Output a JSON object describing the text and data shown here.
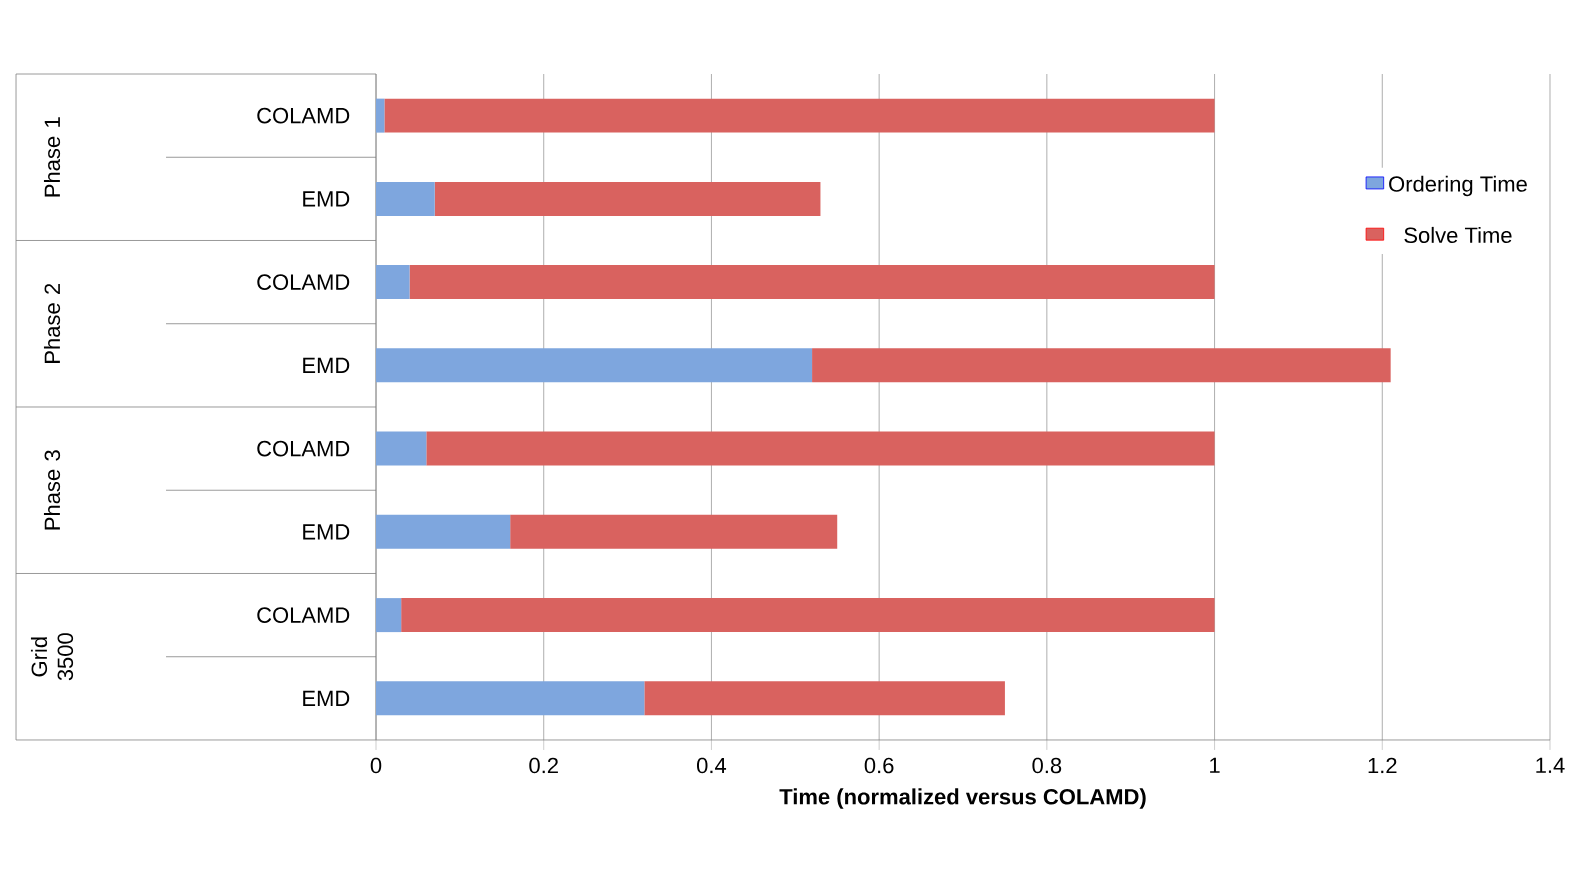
{
  "chart_data": {
    "type": "bar",
    "orientation": "horizontal",
    "stacked": true,
    "categories": [
      "COLAMD",
      "EMD",
      "COLAMD",
      "EMD",
      "COLAMD",
      "EMD",
      "COLAMD",
      "EMD"
    ],
    "series": [
      {
        "name": "Ordering Time",
        "color": "#7ea6de",
        "values": [
          0.01,
          0.07,
          0.04,
          0.52,
          0.06,
          0.16,
          0.03,
          0.32
        ]
      },
      {
        "name": "Solve Time",
        "color": "#d9625f",
        "values": [
          0.99,
          0.46,
          0.96,
          0.69,
          0.94,
          0.39,
          0.97,
          0.43
        ]
      }
    ],
    "xlim": [
      0,
      1.4
    ],
    "xticks": [
      0,
      0.2,
      0.4,
      0.6,
      0.8,
      1,
      1.2,
      1.4
    ],
    "xlabel": "Time (normalized versus COLAMD)",
    "grid": "x",
    "legend": "top right",
    "annotations": [
      "Phase 1",
      "Phase 2",
      "Phase 3",
      "Grid 3500"
    ]
  }
}
